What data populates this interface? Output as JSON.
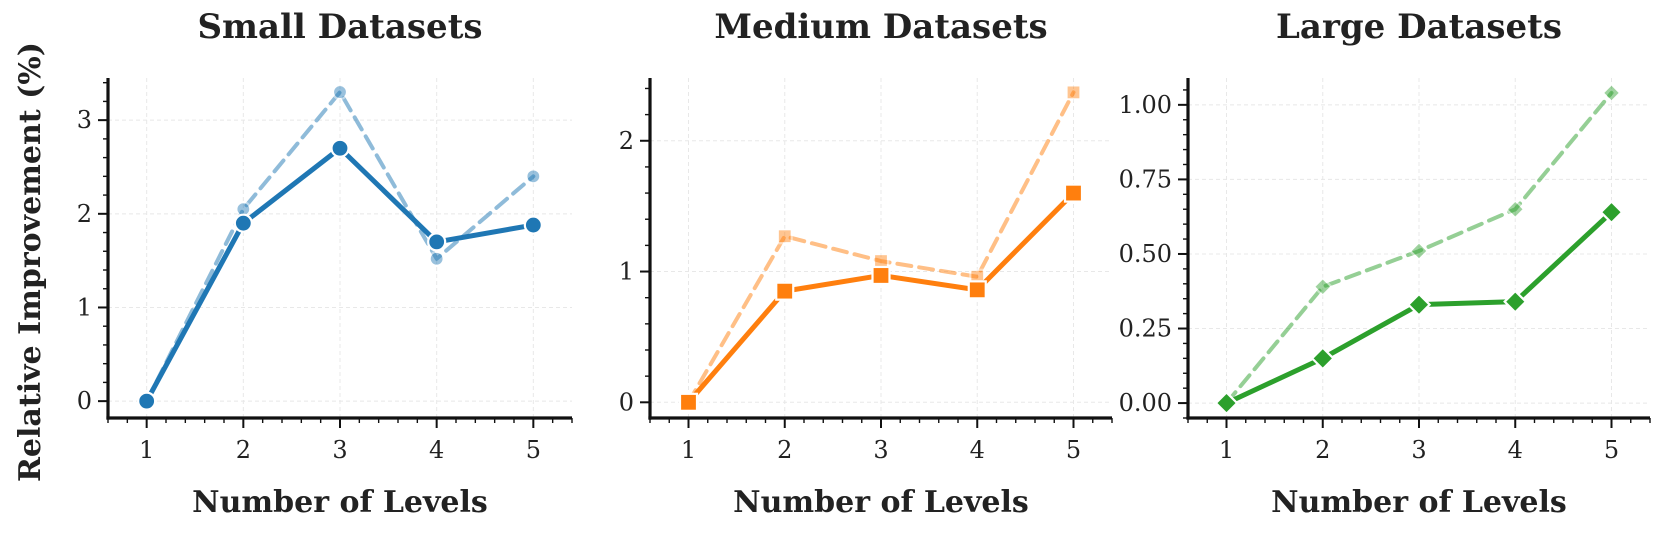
{
  "chart_data": [
    {
      "type": "line",
      "title": "Small Datasets",
      "xlabel": "Number of Levels",
      "ylabel": "Relative Improvement (%)",
      "x": [
        1,
        2,
        3,
        4,
        5
      ],
      "xlim": [
        0.6,
        5.4
      ],
      "ylim": [
        -0.18,
        3.45
      ],
      "yticks": [
        0,
        1,
        2,
        3
      ],
      "ytick_labels": [
        "0",
        "1",
        "2",
        "3"
      ],
      "xticks": [
        1,
        2,
        3,
        4,
        5
      ],
      "xtick_labels": [
        "1",
        "2",
        "3",
        "4",
        "5"
      ],
      "grid": true,
      "color": "#1f77b4",
      "marker": "circle",
      "series": [
        {
          "style": "solid",
          "values": [
            0.0,
            1.9,
            2.7,
            1.7,
            1.88
          ]
        },
        {
          "style": "dashed",
          "values": [
            0.0,
            2.05,
            3.3,
            1.52,
            2.4
          ]
        }
      ]
    },
    {
      "type": "line",
      "title": "Medium Datasets",
      "xlabel": "Number of Levels",
      "ylabel": "",
      "x": [
        1,
        2,
        3,
        4,
        5
      ],
      "xlim": [
        0.6,
        5.4
      ],
      "ylim": [
        -0.12,
        2.48
      ],
      "yticks": [
        0,
        1,
        2
      ],
      "ytick_labels": [
        "0",
        "1",
        "2"
      ],
      "xticks": [
        1,
        2,
        3,
        4,
        5
      ],
      "xtick_labels": [
        "1",
        "2",
        "3",
        "4",
        "5"
      ],
      "grid": true,
      "color": "#ff7f0e",
      "marker": "square",
      "series": [
        {
          "style": "solid",
          "values": [
            0.0,
            0.85,
            0.97,
            0.86,
            1.6
          ]
        },
        {
          "style": "dashed",
          "values": [
            0.0,
            1.27,
            1.08,
            0.96,
            2.37
          ]
        }
      ]
    },
    {
      "type": "line",
      "title": "Large Datasets",
      "xlabel": "Number of Levels",
      "ylabel": "",
      "x": [
        1,
        2,
        3,
        4,
        5
      ],
      "xlim": [
        0.6,
        5.4
      ],
      "ylim": [
        -0.05,
        1.09
      ],
      "yticks": [
        0,
        0.25,
        0.5,
        0.75,
        1.0
      ],
      "ytick_labels": [
        "0.00",
        "0.25",
        "0.50",
        "0.75",
        "1.00"
      ],
      "xticks": [
        1,
        2,
        3,
        4,
        5
      ],
      "xtick_labels": [
        "1",
        "2",
        "3",
        "4",
        "5"
      ],
      "grid": true,
      "color": "#2ca02c",
      "marker": "diamond",
      "series": [
        {
          "style": "solid",
          "values": [
            0.0,
            0.15,
            0.33,
            0.34,
            0.64
          ]
        },
        {
          "style": "dashed",
          "values": [
            0.0,
            0.39,
            0.51,
            0.65,
            1.04
          ]
        }
      ]
    }
  ]
}
